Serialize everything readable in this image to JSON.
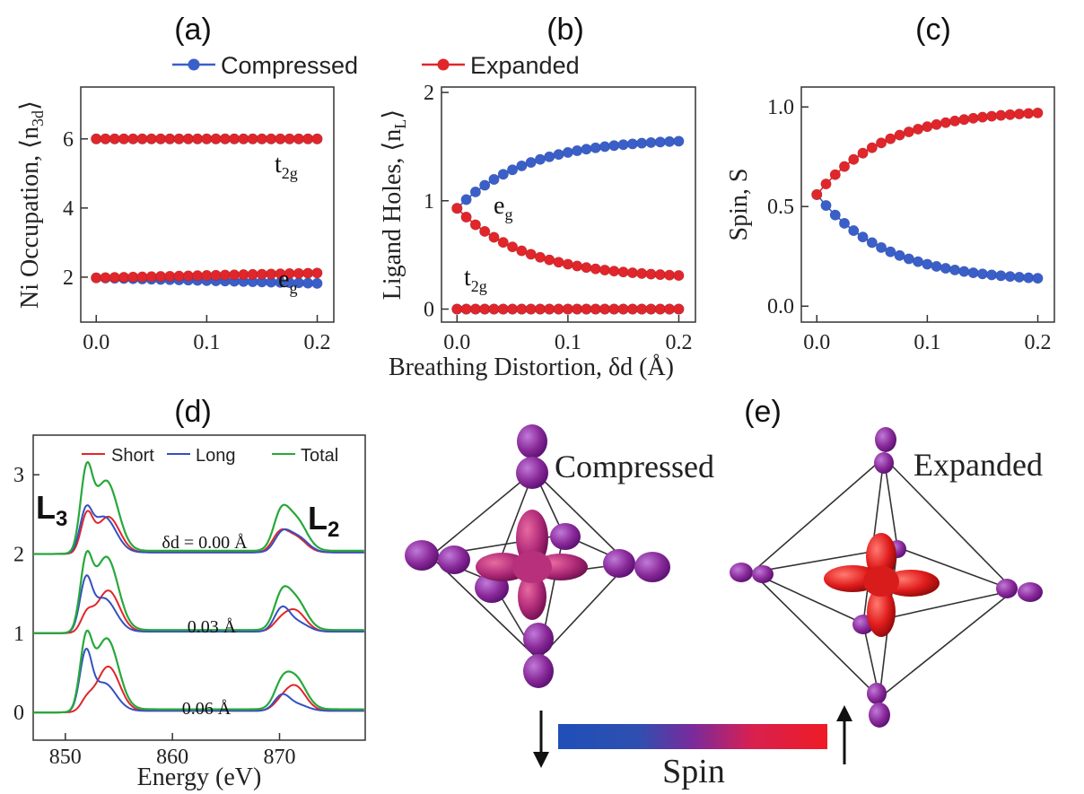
{
  "panels": {
    "a": "(a)",
    "b": "(b)",
    "c": "(c)",
    "d": "(d)",
    "e": "(e)"
  },
  "legend_top": {
    "compressed": "Compressed",
    "expanded": "Expanded"
  },
  "colors": {
    "compressed": "#3a5fc9",
    "expanded": "#e0262b",
    "short": "#e0262b",
    "long": "#3550c0",
    "total": "#27a83a",
    "octa": "#8a2a9a"
  },
  "shared_xlabel": "Breathing Distortion, δd (Å)",
  "chart_data": [
    {
      "id": "a",
      "type": "scatter",
      "ylabel": "Ni Occupation, ⟨n3d⟩",
      "xlim": [
        -0.014,
        0.215
      ],
      "ylim": [
        0.7,
        7.5
      ],
      "xticks": [
        "0.0",
        "0.1",
        "0.2"
      ],
      "yticks": [
        2,
        4,
        6
      ],
      "annotations": [
        "t2g",
        "eg"
      ],
      "series": [
        {
          "name": "Compressed",
          "x_start": 0.0,
          "x_step": 0.00833,
          "count": 25,
          "y_start": 1.98,
          "y_end": 1.82,
          "group": "eg"
        },
        {
          "name": "Expanded",
          "x_start": 0.0,
          "x_step": 0.00833,
          "count": 25,
          "y_start": 1.98,
          "y_end": 2.12,
          "group": "eg"
        },
        {
          "name": "Compressed",
          "x_start": 0.0,
          "x_step": 0.00833,
          "count": 25,
          "y_start": 6.0,
          "y_end": 6.0,
          "group": "t2g"
        },
        {
          "name": "Expanded",
          "x_start": 0.0,
          "x_step": 0.00833,
          "count": 25,
          "y_start": 6.0,
          "y_end": 6.0,
          "group": "t2g"
        }
      ]
    },
    {
      "id": "b",
      "type": "scatter",
      "ylabel": "Ligand Holes, ⟨nL⟩",
      "xlim": [
        -0.014,
        0.215
      ],
      "ylim": [
        -0.12,
        2.05
      ],
      "xticks": [
        "0.0",
        "0.1",
        "0.2"
      ],
      "yticks": [
        0,
        1,
        2
      ],
      "annotations": [
        "eg",
        "t2g"
      ],
      "series": [
        {
          "name": "Compressed",
          "x_start": 0.0,
          "x_step": 0.00833,
          "count": 25,
          "y_start": 0.93,
          "y_end": 1.55,
          "group": "eg"
        },
        {
          "name": "Expanded",
          "x_start": 0.0,
          "x_step": 0.00833,
          "count": 25,
          "y_start": 0.93,
          "y_end": 0.31,
          "group": "eg"
        },
        {
          "name": "Compressed",
          "x_start": 0.0,
          "x_step": 0.00833,
          "count": 25,
          "y_start": 0.0,
          "y_end": 0.0,
          "group": "t2g"
        },
        {
          "name": "Expanded",
          "x_start": 0.0,
          "x_step": 0.00833,
          "count": 25,
          "y_start": 0.0,
          "y_end": 0.0,
          "group": "t2g"
        }
      ]
    },
    {
      "id": "c",
      "type": "scatter",
      "ylabel": "Spin, S",
      "xlim": [
        -0.014,
        0.215
      ],
      "ylim": [
        -0.08,
        1.1
      ],
      "xticks": [
        "0.0",
        "0.1",
        "0.2"
      ],
      "yticks": [
        "0.0",
        "0.5",
        "1.0"
      ],
      "series": [
        {
          "name": "Compressed",
          "x_start": 0.0,
          "x_step": 0.00833,
          "count": 25,
          "y_start": 0.56,
          "y_end": 0.14
        },
        {
          "name": "Expanded",
          "x_start": 0.0,
          "x_step": 0.00833,
          "count": 25,
          "y_start": 0.56,
          "y_end": 0.97
        }
      ]
    },
    {
      "id": "d",
      "type": "line",
      "xlabel": "Energy (eV)",
      "xlim": [
        847,
        878
      ],
      "ylim": [
        -0.35,
        3.5
      ],
      "xticks": [
        850,
        860,
        870
      ],
      "yticks": [
        0,
        1,
        2,
        3
      ],
      "legend": [
        "Short",
        "Long",
        "Total"
      ],
      "edge_labels": [
        "L3",
        "L2"
      ],
      "offsets": [
        {
          "label": "δd = 0.00 Å",
          "offset": 2.0
        },
        {
          "label": "0.03 Å",
          "offset": 1.0
        },
        {
          "label": "0.06 Å",
          "offset": 0.0
        }
      ]
    }
  ],
  "panel_e": {
    "compressed_label": "Compressed",
    "expanded_label": "Expanded",
    "spin_label": "Spin"
  }
}
